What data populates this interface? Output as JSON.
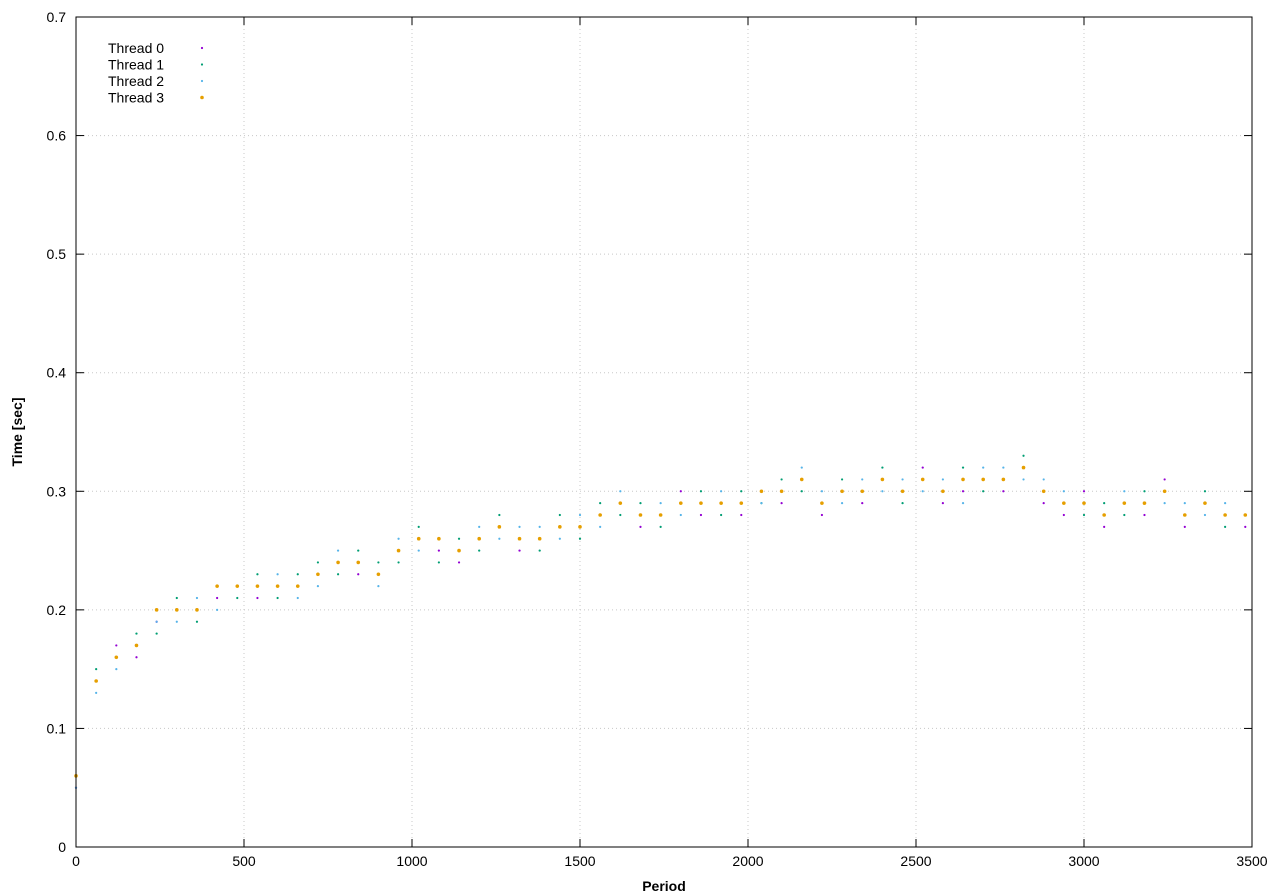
{
  "chart_data": {
    "type": "scatter",
    "title": "",
    "xlabel": "Period",
    "ylabel": "Time [sec]",
    "xlim": [
      0,
      3500
    ],
    "ylim": [
      0,
      0.7
    ],
    "x_ticks": [
      0,
      500,
      1000,
      1500,
      2000,
      2500,
      3000,
      3500
    ],
    "y_ticks": [
      0,
      0.1,
      0.2,
      0.3,
      0.4,
      0.5,
      0.6,
      0.7
    ],
    "x_tick_labels": [
      "0",
      "500",
      "1000",
      "1500",
      "2000",
      "2500",
      "3000",
      "3500"
    ],
    "y_tick_labels": [
      "0",
      "0.1",
      "0.2",
      "0.3",
      "0.4",
      "0.5",
      "0.6",
      "0.7"
    ],
    "grid": true,
    "legend_position": "top-left",
    "series": [
      {
        "name": "Thread 0",
        "color": "#9400d3",
        "marker": "small-dot",
        "x": [
          0,
          60,
          120,
          180,
          240,
          300,
          360,
          420,
          480,
          540,
          600,
          660,
          720,
          780,
          840,
          900,
          960,
          1020,
          1080,
          1140,
          1200,
          1260,
          1320,
          1380,
          1440,
          1500,
          1560,
          1620,
          1680,
          1740,
          1800,
          1860,
          1920,
          1980,
          2040,
          2100,
          2160,
          2220,
          2280,
          2340,
          2400,
          2460,
          2520,
          2580,
          2640,
          2700,
          2760,
          2820,
          2880,
          2940,
          3000,
          3060,
          3120,
          3180,
          3240,
          3300,
          3360,
          3420,
          3480
        ],
        "y": [
          0.05,
          0.14,
          0.17,
          0.16,
          0.19,
          0.2,
          0.2,
          0.21,
          0.22,
          0.21,
          0.22,
          0.22,
          0.23,
          0.24,
          0.23,
          0.23,
          0.25,
          0.26,
          0.25,
          0.24,
          0.26,
          0.27,
          0.25,
          0.26,
          0.27,
          0.27,
          0.28,
          0.29,
          0.27,
          0.28,
          0.3,
          0.28,
          0.29,
          0.28,
          0.3,
          0.29,
          0.31,
          0.28,
          0.3,
          0.29,
          0.31,
          0.3,
          0.32,
          0.29,
          0.3,
          0.31,
          0.3,
          0.32,
          0.29,
          0.28,
          0.3,
          0.27,
          0.29,
          0.28,
          0.31,
          0.27,
          0.29,
          0.28,
          0.27
        ]
      },
      {
        "name": "Thread 1",
        "color": "#009e73",
        "marker": "small-dot",
        "x": [
          0,
          60,
          120,
          180,
          240,
          300,
          360,
          420,
          480,
          540,
          600,
          660,
          720,
          780,
          840,
          900,
          960,
          1020,
          1080,
          1140,
          1200,
          1260,
          1320,
          1380,
          1440,
          1500,
          1560,
          1620,
          1680,
          1740,
          1800,
          1860,
          1920,
          1980,
          2040,
          2100,
          2160,
          2220,
          2280,
          2340,
          2400,
          2460,
          2520,
          2580,
          2640,
          2700,
          2760,
          2820,
          2880,
          2940,
          3000,
          3060,
          3120,
          3180,
          3240,
          3300,
          3360,
          3420,
          3480
        ],
        "y": [
          0.06,
          0.15,
          0.16,
          0.18,
          0.18,
          0.21,
          0.19,
          0.22,
          0.21,
          0.23,
          0.21,
          0.23,
          0.24,
          0.23,
          0.25,
          0.24,
          0.24,
          0.27,
          0.24,
          0.26,
          0.25,
          0.28,
          0.26,
          0.25,
          0.28,
          0.26,
          0.29,
          0.28,
          0.29,
          0.27,
          0.29,
          0.3,
          0.28,
          0.3,
          0.29,
          0.31,
          0.3,
          0.29,
          0.31,
          0.3,
          0.32,
          0.29,
          0.31,
          0.3,
          0.32,
          0.3,
          0.31,
          0.33,
          0.3,
          0.29,
          0.28,
          0.29,
          0.28,
          0.3,
          0.3,
          0.28,
          0.3,
          0.27,
          0.28
        ]
      },
      {
        "name": "Thread 2",
        "color": "#56b4e9",
        "marker": "small-dot",
        "x": [
          0,
          60,
          120,
          180,
          240,
          300,
          360,
          420,
          480,
          540,
          600,
          660,
          720,
          780,
          840,
          900,
          960,
          1020,
          1080,
          1140,
          1200,
          1260,
          1320,
          1380,
          1440,
          1500,
          1560,
          1620,
          1680,
          1740,
          1800,
          1860,
          1920,
          1980,
          2040,
          2100,
          2160,
          2220,
          2280,
          2340,
          2400,
          2460,
          2520,
          2580,
          2640,
          2700,
          2760,
          2820,
          2880,
          2940,
          3000,
          3060,
          3120,
          3180,
          3240,
          3300,
          3360,
          3420,
          3480
        ],
        "y": [
          0.05,
          0.13,
          0.15,
          0.17,
          0.19,
          0.19,
          0.21,
          0.2,
          0.22,
          0.22,
          0.23,
          0.21,
          0.22,
          0.25,
          0.24,
          0.22,
          0.26,
          0.25,
          0.26,
          0.25,
          0.27,
          0.26,
          0.27,
          0.27,
          0.26,
          0.28,
          0.27,
          0.3,
          0.28,
          0.29,
          0.28,
          0.29,
          0.3,
          0.29,
          0.29,
          0.3,
          0.32,
          0.3,
          0.29,
          0.31,
          0.3,
          0.31,
          0.3,
          0.31,
          0.29,
          0.32,
          0.32,
          0.31,
          0.31,
          0.3,
          0.29,
          0.28,
          0.3,
          0.29,
          0.29,
          0.29,
          0.28,
          0.29,
          0.28
        ]
      },
      {
        "name": "Thread 3",
        "color": "#e69f00",
        "marker": "dot",
        "x": [
          0,
          60,
          120,
          180,
          240,
          300,
          360,
          420,
          480,
          540,
          600,
          660,
          720,
          780,
          840,
          900,
          960,
          1020,
          1080,
          1140,
          1200,
          1260,
          1320,
          1380,
          1440,
          1500,
          1560,
          1620,
          1680,
          1740,
          1800,
          1860,
          1920,
          1980,
          2040,
          2100,
          2160,
          2220,
          2280,
          2340,
          2400,
          2460,
          2520,
          2580,
          2640,
          2700,
          2760,
          2820,
          2880,
          2940,
          3000,
          3060,
          3120,
          3180,
          3240,
          3300,
          3360,
          3420,
          3480
        ],
        "y": [
          0.06,
          0.14,
          0.16,
          0.17,
          0.2,
          0.2,
          0.2,
          0.22,
          0.22,
          0.22,
          0.22,
          0.22,
          0.23,
          0.24,
          0.24,
          0.23,
          0.25,
          0.26,
          0.26,
          0.25,
          0.26,
          0.27,
          0.26,
          0.26,
          0.27,
          0.27,
          0.28,
          0.29,
          0.28,
          0.28,
          0.29,
          0.29,
          0.29,
          0.29,
          0.3,
          0.3,
          0.31,
          0.29,
          0.3,
          0.3,
          0.31,
          0.3,
          0.31,
          0.3,
          0.31,
          0.31,
          0.31,
          0.32,
          0.3,
          0.29,
          0.29,
          0.28,
          0.29,
          0.29,
          0.3,
          0.28,
          0.29,
          0.28,
          0.28
        ]
      }
    ]
  }
}
